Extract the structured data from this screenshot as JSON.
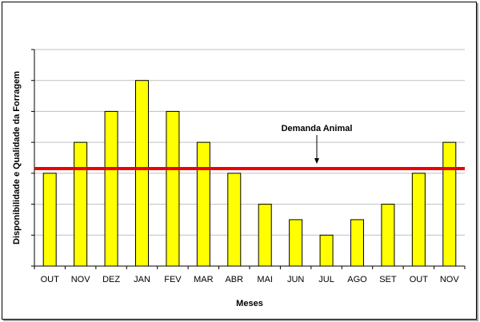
{
  "chart_data": {
    "type": "bar",
    "title": "",
    "xlabel": "Meses",
    "ylabel": "Disponibilidade e Qualidade da Forragem",
    "categories": [
      "OUT",
      "NOV",
      "DEZ",
      "JAN",
      "FEV",
      "MAR",
      "ABR",
      "MAI",
      "JUN",
      "JUL",
      "AGO",
      "SET",
      "OUT",
      "NOV"
    ],
    "values": [
      3,
      4,
      5,
      6,
      5,
      4,
      3,
      2,
      1.5,
      1,
      1.5,
      2,
      3,
      4
    ],
    "ylim": [
      0,
      7
    ],
    "grid": true,
    "reference_line": {
      "label": "Demanda Animal",
      "value": 3.15
    },
    "colors": {
      "bar_fill": "#ffff00",
      "bar_stroke": "#000000",
      "reference_line": "#ee0000",
      "grid": "#bfbfbf"
    }
  }
}
